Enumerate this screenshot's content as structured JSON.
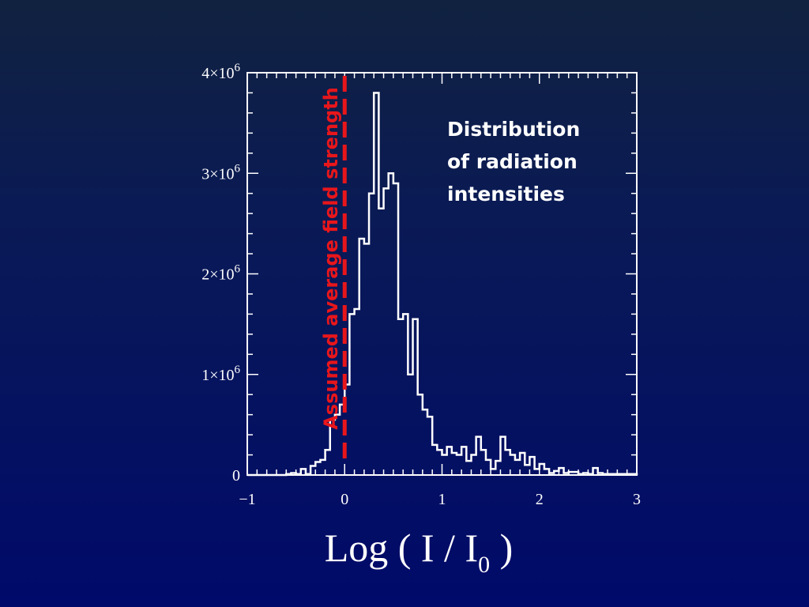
{
  "chart_data": {
    "type": "histogram",
    "title": "",
    "xlabel": "Log ( I / I",
    "xlabel_subscript": "0",
    "xlabel_close": " )",
    "ylabel": "",
    "xlim": [
      -1,
      3
    ],
    "ylim": [
      0,
      4000000
    ],
    "grid": false,
    "x_ticks": [
      {
        "value": -1,
        "label": "−1"
      },
      {
        "value": 0,
        "label": "0"
      },
      {
        "value": 1,
        "label": "1"
      },
      {
        "value": 2,
        "label": "2"
      },
      {
        "value": 3,
        "label": "3"
      }
    ],
    "y_ticks": [
      {
        "value": 0,
        "label": "0",
        "exp": ""
      },
      {
        "value": 1000000,
        "label": "1×10",
        "exp": "6"
      },
      {
        "value": 2000000,
        "label": "2×10",
        "exp": "6"
      },
      {
        "value": 3000000,
        "label": "3×10",
        "exp": "6"
      },
      {
        "value": 4000000,
        "label": "4×10",
        "exp": "6"
      }
    ],
    "bin_width": 0.05,
    "bins_start": -1.0,
    "counts": [
      0,
      0,
      0,
      0,
      0,
      0,
      0,
      0,
      10000,
      20000,
      10000,
      60000,
      10000,
      90000,
      130000,
      150000,
      250000,
      550000,
      600000,
      700000,
      900000,
      1600000,
      1650000,
      2350000,
      2300000,
      2800000,
      3800000,
      2650000,
      2850000,
      3000000,
      2900000,
      1550000,
      1600000,
      1000000,
      1550000,
      800000,
      650000,
      580000,
      300000,
      250000,
      200000,
      280000,
      220000,
      200000,
      280000,
      140000,
      200000,
      380000,
      250000,
      150000,
      60000,
      140000,
      380000,
      250000,
      200000,
      150000,
      220000,
      100000,
      180000,
      60000,
      110000,
      60000,
      20000,
      40000,
      70000,
      20000,
      30000,
      30000,
      10000,
      20000,
      10000,
      70000,
      20000,
      10000,
      10000,
      10000,
      10000,
      10000,
      10000,
      10000
    ],
    "reference_line": {
      "x": 0,
      "label": "Assumed average field strength",
      "color": "#e8161b"
    },
    "annotation": [
      "Distribution",
      "of radiation",
      "intensities"
    ]
  }
}
